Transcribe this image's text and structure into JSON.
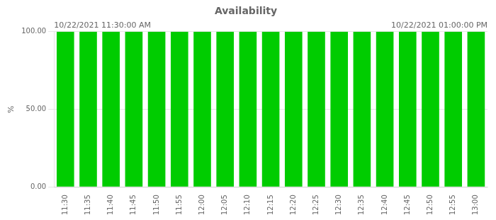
{
  "chart_data": {
    "type": "bar",
    "title": "Availability",
    "annotations": [
      "10/22/2021 11:30:00 AM",
      "10/22/2021 01:00:00 PM"
    ],
    "ylabel": "%",
    "categories": [
      "11:30",
      "11:35",
      "11:40",
      "11:45",
      "11:50",
      "11:55",
      "12:00",
      "12:05",
      "12:10",
      "12:15",
      "12:20",
      "12:25",
      "12:30",
      "12:35",
      "12:40",
      "12:45",
      "12:50",
      "12:55",
      "13:00"
    ],
    "values": [
      100.0,
      100.0,
      100.0,
      100.0,
      100.0,
      100.0,
      100.0,
      100.0,
      100.0,
      100.0,
      100.0,
      100.0,
      100.0,
      100.0,
      100.0,
      100.0,
      100.0,
      100.0,
      100.0
    ],
    "color": "#00CC00",
    "ylim": [
      0,
      100
    ],
    "yticks": [
      {
        "value": 0,
        "label": "0.00"
      },
      {
        "value": 50,
        "label": "50.00"
      },
      {
        "value": 100,
        "label": "100.00"
      }
    ],
    "grid": true
  }
}
